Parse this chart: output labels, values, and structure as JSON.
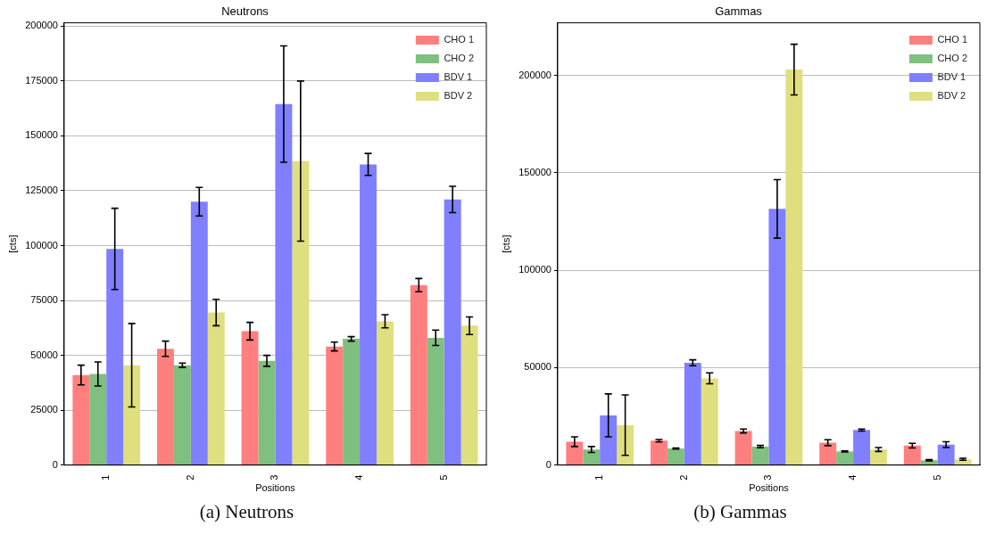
{
  "chart_data": [
    {
      "type": "bar",
      "title": "Neutrons",
      "xlabel": "Positions",
      "ylabel": "[cts]",
      "categories": [
        "1",
        "2",
        "3",
        "4",
        "5"
      ],
      "series": [
        {
          "name": "CHO 1",
          "color": "#ff7f7f",
          "values": [
            41000,
            53000,
            61000,
            54000,
            82000
          ],
          "errors": [
            4500,
            3500,
            4000,
            2000,
            3000
          ]
        },
        {
          "name": "CHO 2",
          "color": "#7fbf7f",
          "values": [
            41500,
            45500,
            47500,
            57500,
            58000
          ],
          "errors": [
            5500,
            1000,
            2500,
            1000,
            3500
          ]
        },
        {
          "name": "BDV 1",
          "color": "#7f7fff",
          "values": [
            98500,
            120000,
            164500,
            137000,
            121000
          ],
          "errors": [
            18500,
            6500,
            26500,
            5000,
            6000
          ]
        },
        {
          "name": "BDV 2",
          "color": "#dfdf7f",
          "values": [
            45500,
            69500,
            138500,
            65500,
            63500
          ],
          "errors": [
            19000,
            6000,
            36500,
            3000,
            4000
          ]
        }
      ],
      "ylim": [
        0,
        201500
      ],
      "yticks": [
        0,
        25000,
        50000,
        75000,
        100000,
        125000,
        150000,
        175000,
        200000
      ],
      "grid": "y",
      "legend": "top right",
      "annotations": [
        "(a) Neutrons"
      ]
    },
    {
      "type": "bar",
      "title": "Gammas",
      "xlabel": "Positions",
      "ylabel": "[cts]",
      "categories": [
        "1",
        "2",
        "3",
        "4",
        "5"
      ],
      "series": [
        {
          "name": "CHO 1",
          "color": "#ff7f7f",
          "values": [
            12000,
            12500,
            17500,
            11500,
            10000
          ],
          "errors": [
            2500,
            600,
            1000,
            1500,
            1200
          ]
        },
        {
          "name": "CHO 2",
          "color": "#7fbf7f",
          "values": [
            8000,
            8500,
            9500,
            7000,
            2500
          ],
          "errors": [
            1500,
            300,
            600,
            300,
            300
          ]
        },
        {
          "name": "BDV 1",
          "color": "#7f7fff",
          "values": [
            25500,
            52500,
            131500,
            18000,
            10500
          ],
          "errors": [
            11000,
            1500,
            15000,
            500,
            1500
          ]
        },
        {
          "name": "BDV 2",
          "color": "#dfdf7f",
          "values": [
            20500,
            44500,
            203000,
            8000,
            3000
          ],
          "errors": [
            15500,
            2800,
            13000,
            1000,
            500
          ]
        }
      ],
      "ylim": [
        0,
        227000
      ],
      "yticks": [
        0,
        50000,
        100000,
        150000,
        200000
      ],
      "grid": "y",
      "legend": "top right",
      "annotations": [
        "(b) Gammas"
      ]
    }
  ]
}
